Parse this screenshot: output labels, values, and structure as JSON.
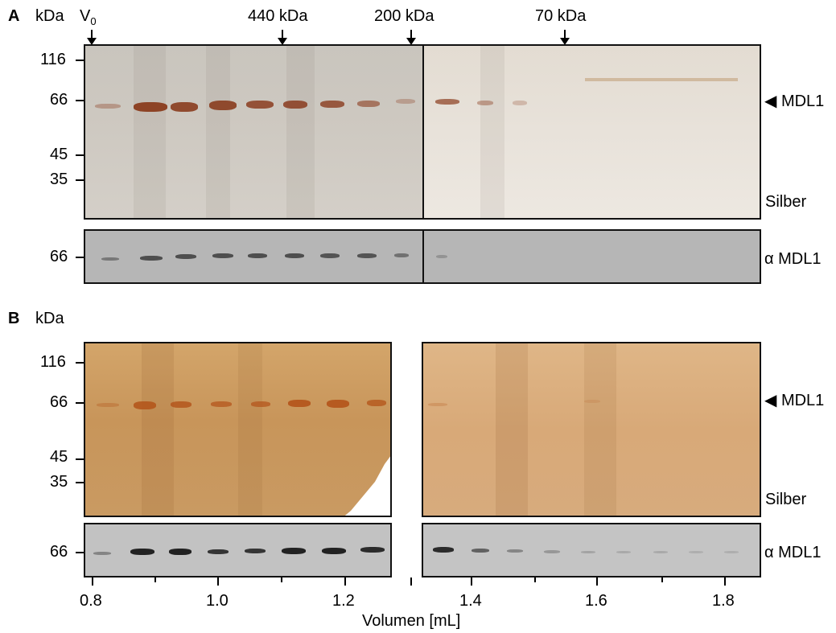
{
  "panelA": {
    "letter": "A",
    "kda_label": "kDa",
    "void_label": "V",
    "void_sub": "0",
    "markers": [
      {
        "label": "440 kDa"
      },
      {
        "label": "200 kDa"
      },
      {
        "label": "70 kDa"
      }
    ],
    "silver": {
      "mw": [
        "116",
        "66",
        "45",
        "35"
      ],
      "band_label": "MDL1",
      "stain_label": "Silber",
      "band_color": "#8a3c1e"
    },
    "western": {
      "mw": [
        "66"
      ],
      "label": "α MDL1",
      "band_color": "#2b2b2b"
    }
  },
  "panelB": {
    "letter": "B",
    "kda_label": "kDa",
    "silver": {
      "mw": [
        "116",
        "66",
        "45",
        "35"
      ],
      "band_label": "MDL1",
      "stain_label": "Silber",
      "band_color": "#b4561c"
    },
    "western": {
      "mw": [
        "66"
      ],
      "label": "α MDL1",
      "band_color": "#111111"
    }
  },
  "axis": {
    "ticks": [
      "0.8",
      "1.0",
      "1.2",
      "1.4",
      "1.6",
      "1.8"
    ],
    "label": "Volumen [mL]"
  }
}
